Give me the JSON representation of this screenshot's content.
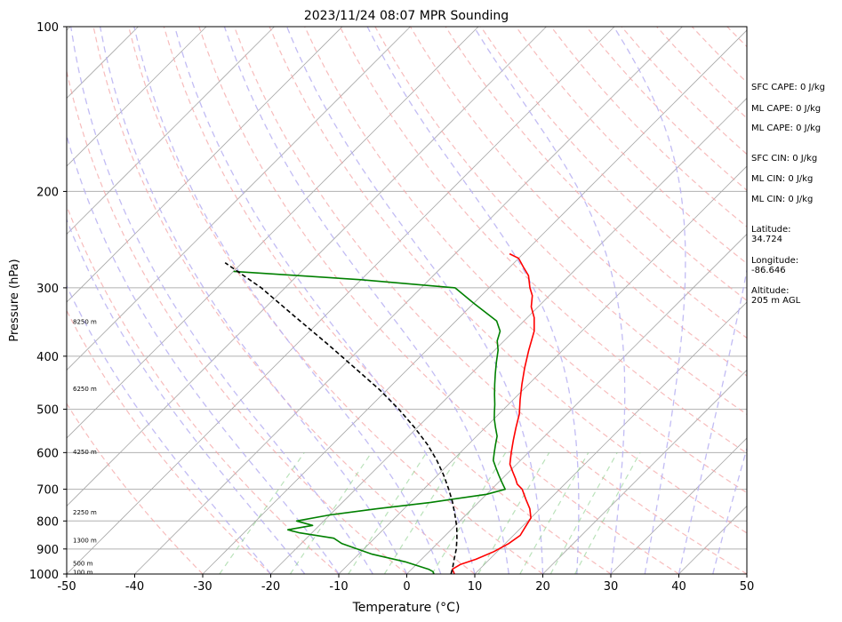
{
  "chart_data": {
    "type": "line",
    "title": "2023/11/24 08:07 MPR Sounding",
    "xlabel": "Temperature (°C)",
    "ylabel": "Pressure (hPa)",
    "xlim": [
      -50,
      50
    ],
    "ylim": [
      1000,
      100
    ],
    "y_scale": "log",
    "grid": true,
    "x_ticks": [
      -50,
      -40,
      -30,
      -20,
      -10,
      0,
      10,
      20,
      30,
      40,
      50
    ],
    "y_ticks": [
      100,
      200,
      300,
      400,
      500,
      600,
      700,
      800,
      900,
      1000
    ],
    "skew_degrees": 45,
    "series": [
      {
        "name": "",
        "color": "#ff0000",
        "points": [
          [
            7,
            1000
          ],
          [
            6,
            980
          ],
          [
            6.5,
            960
          ],
          [
            8,
            940
          ],
          [
            9.5,
            910
          ],
          [
            10.5,
            880
          ],
          [
            11,
            850
          ],
          [
            10.5,
            820
          ],
          [
            10,
            790
          ],
          [
            8.5,
            760
          ],
          [
            6.5,
            730
          ],
          [
            4.5,
            700
          ],
          [
            3,
            685
          ],
          [
            2,
            670
          ],
          [
            0.5,
            650
          ],
          [
            -1,
            630
          ],
          [
            -2.5,
            600
          ],
          [
            -4,
            570
          ],
          [
            -5.5,
            540
          ],
          [
            -7,
            510
          ],
          [
            -9,
            480
          ],
          [
            -11,
            450
          ],
          [
            -13,
            420
          ],
          [
            -15,
            390
          ],
          [
            -17,
            360
          ],
          [
            -19,
            340
          ],
          [
            -21,
            325
          ],
          [
            -22.5,
            310
          ],
          [
            -24,
            300
          ],
          [
            -26,
            285
          ],
          [
            -28,
            275
          ],
          [
            -30,
            265
          ],
          [
            -32,
            260
          ]
        ]
      },
      {
        "name": "",
        "color": "#008000",
        "points": [
          [
            4,
            1000
          ],
          [
            3.5,
            990
          ],
          [
            2.5,
            980
          ],
          [
            -2,
            950
          ],
          [
            -8,
            920
          ],
          [
            -14,
            880
          ],
          [
            -16,
            860
          ],
          [
            -22,
            840
          ],
          [
            -24,
            830
          ],
          [
            -21,
            815
          ],
          [
            -24,
            800
          ],
          [
            -20,
            780
          ],
          [
            -14,
            760
          ],
          [
            -7,
            740
          ],
          [
            0,
            715
          ],
          [
            2,
            700
          ],
          [
            0.5,
            680
          ],
          [
            -1,
            660
          ],
          [
            -2.5,
            640
          ],
          [
            -4,
            620
          ],
          [
            -5,
            600
          ],
          [
            -6,
            580
          ],
          [
            -7,
            560
          ],
          [
            -8.5,
            540
          ],
          [
            -10,
            520
          ],
          [
            -11,
            505
          ],
          [
            -12,
            490
          ],
          [
            -13.5,
            470
          ],
          [
            -15,
            450
          ],
          [
            -16.5,
            430
          ],
          [
            -18,
            410
          ],
          [
            -19.5,
            390
          ],
          [
            -21,
            375
          ],
          [
            -22,
            360
          ],
          [
            -24,
            345
          ],
          [
            -30,
            320
          ],
          [
            -35,
            300
          ],
          [
            -50,
            290
          ],
          [
            -70,
            280
          ]
        ]
      },
      {
        "name": "",
        "color": "#000000",
        "dashed": true,
        "points": [
          [
            6.5,
            1000
          ],
          [
            6,
            980
          ],
          [
            4.8,
            940
          ],
          [
            3.6,
            900
          ],
          [
            2.1,
            860
          ],
          [
            0.4,
            820
          ],
          [
            -1.6,
            780
          ],
          [
            -3.8,
            740
          ],
          [
            -6.3,
            700
          ],
          [
            -9.1,
            660
          ],
          [
            -12.3,
            620
          ],
          [
            -16,
            580
          ],
          [
            -20.4,
            540
          ],
          [
            -25.4,
            500
          ],
          [
            -31.2,
            460
          ],
          [
            -38,
            420
          ],
          [
            -45.5,
            380
          ],
          [
            -54,
            340
          ],
          [
            -63.5,
            300
          ],
          [
            -72.5,
            270
          ]
        ]
      }
    ],
    "height_labels": [
      {
        "text": "100 m",
        "p": 990
      },
      {
        "text": "500 m",
        "p": 955
      },
      {
        "text": "1300 m",
        "p": 866
      },
      {
        "text": "2250 m",
        "p": 770
      },
      {
        "text": "4250 m",
        "p": 597
      },
      {
        "text": "6250 m",
        "p": 458
      },
      {
        "text": "8250 m",
        "p": 345
      }
    ],
    "annotations": [
      "SFC CAPE: 0 J/kg",
      "ML CAPE: 0 J/kg",
      "ML CAPE: 0 J/kg",
      "SFC CIN: 0 J/kg",
      "ML CIN: 0 J/kg",
      "ML CIN: 0 J/kg",
      "Latitude:\n34.724",
      "Longitude:\n-86.646",
      "Altitude:\n205 m AGL"
    ]
  }
}
